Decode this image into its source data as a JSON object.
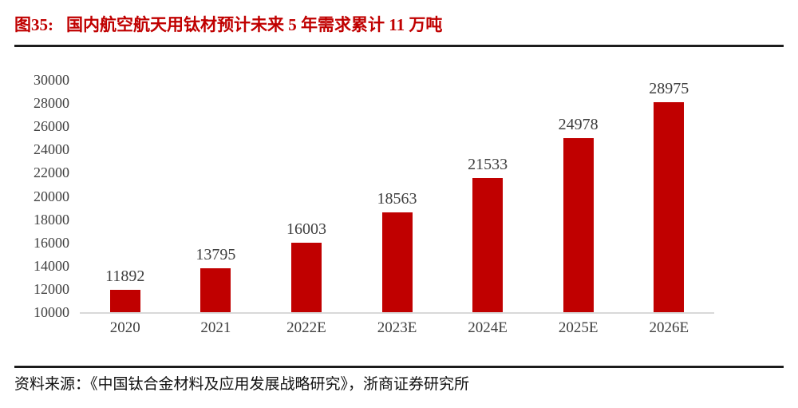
{
  "header": {
    "figure_label": "图35:",
    "title": "国内航空航天用钛材预计未来 5 年需求累计 11 万吨"
  },
  "footer": {
    "source": "资料来源：《中国钛合金材料及应用发展战略研究》，浙商证券研究所"
  },
  "colors": {
    "accent_red": "#C00000",
    "bar_red": "#C00000",
    "label_text": "#3F3F3F",
    "axis_line": "#D9D9D9",
    "rule_dark": "#1C1C1C",
    "source_text": "#111111"
  },
  "chart_data": {
    "type": "bar",
    "title": "国内航空航天用钛材预计未来 5 年需求累计 11 万吨",
    "categories": [
      "2020",
      "2021",
      "2022E",
      "2023E",
      "2024E",
      "2025E",
      "2026E"
    ],
    "values": [
      11892,
      13795,
      16003,
      18563,
      21533,
      24978,
      28975
    ],
    "data_labels": [
      "11892",
      "13795",
      "16003",
      "18563",
      "21533",
      "24978",
      "28975"
    ],
    "xlabel": "",
    "ylabel": "",
    "ylim": [
      10000,
      30000
    ],
    "y_tick_step": 2000,
    "y_ticks": [
      30000,
      28000,
      26000,
      24000,
      22000,
      20000,
      18000,
      16000,
      14000,
      12000,
      10000
    ],
    "grid": false,
    "legend": false,
    "bar_color": "#C00000"
  }
}
